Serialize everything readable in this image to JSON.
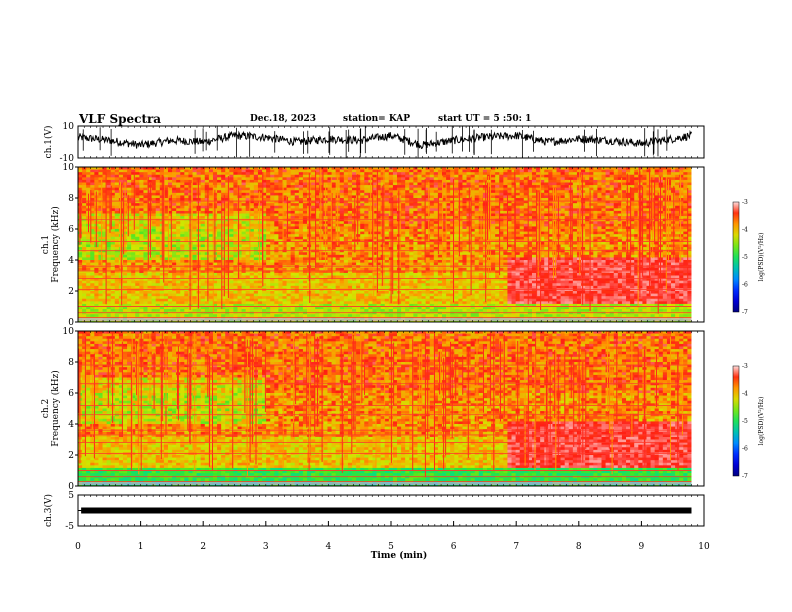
{
  "header": {
    "title": "VLF Spectra",
    "date": "Dec.18, 2023",
    "station": "station= KAP",
    "start": "start UT = 5 :50: 1"
  },
  "chart_data": [
    {
      "type": "line",
      "title": "",
      "ylabel": "ch.1(V)",
      "xlim": [
        0,
        10
      ],
      "ylim": [
        -10,
        10
      ],
      "yticks": [
        "10",
        "-10"
      ],
      "series": [
        {
          "x": [
            0,
            0.5,
            1,
            1.5,
            2,
            2.5,
            3,
            3.5,
            4,
            4.5,
            5,
            5.5,
            6,
            6.5,
            7,
            7.5,
            8,
            8.5,
            9,
            9.5,
            9.8
          ],
          "values": [
            3,
            1,
            -2,
            1,
            0,
            4,
            3,
            0,
            2,
            1,
            4,
            -2,
            1,
            3,
            4,
            0,
            2,
            1,
            -1,
            2,
            4
          ]
        }
      ]
    },
    {
      "type": "heatmap",
      "ylabel": "ch.1\nFrequency (kHz)",
      "yticks": [
        "0",
        "2",
        "4",
        "6",
        "8",
        "10"
      ],
      "ylim": [
        0,
        10
      ],
      "xlim": [
        0,
        10
      ],
      "colorbar": {
        "label": "log(PSD)(V²/Hz)",
        "ticks": [
          "-3",
          "-4",
          "-5",
          "-6",
          "-7"
        ],
        "range": [
          -7,
          -3
        ]
      }
    },
    {
      "type": "heatmap",
      "ylabel": "ch.2\nFrequency (kHz)",
      "yticks": [
        "0",
        "2",
        "4",
        "6",
        "8",
        "10"
      ],
      "ylim": [
        0,
        10
      ],
      "xlim": [
        0,
        10
      ],
      "colorbar": {
        "label": "log(PSD)(V²/Hz)",
        "ticks": [
          "-3",
          "-4",
          "-5",
          "-6",
          "-7"
        ],
        "range": [
          -7,
          -3
        ]
      }
    },
    {
      "type": "line",
      "ylabel": "ch.3(V)",
      "xlim": [
        0,
        10
      ],
      "ylim": [
        -5,
        5
      ],
      "yticks": [
        "5",
        "-5"
      ],
      "xlabel": "Time (min)",
      "xticks": [
        "0",
        "1",
        "2",
        "3",
        "4",
        "5",
        "6",
        "7",
        "8",
        "9",
        "10"
      ],
      "series": [
        {
          "x": [
            0,
            9.8
          ],
          "values": [
            0,
            0
          ]
        }
      ]
    }
  ]
}
